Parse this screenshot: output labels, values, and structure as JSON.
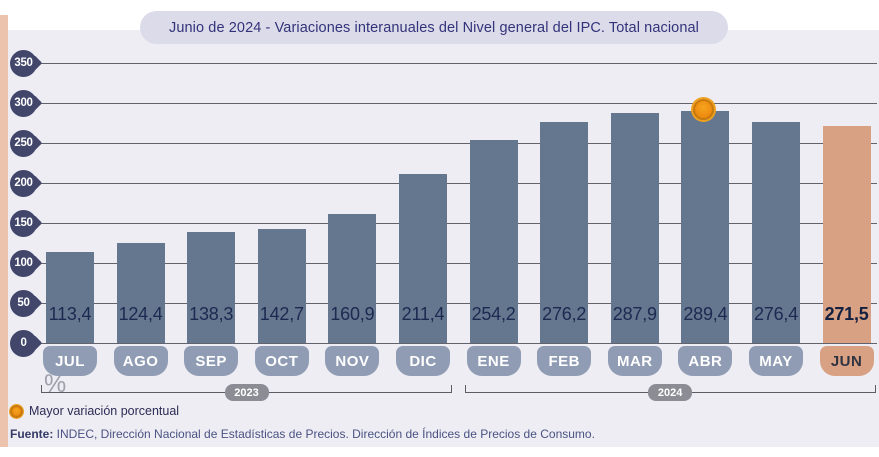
{
  "title": "Junio de 2024 - Variaciones interanuales del Nivel general del IPC. Total nacional",
  "y_axis": {
    "unit": "%",
    "ticks": [
      350,
      300,
      250,
      200,
      150,
      100,
      50,
      0
    ]
  },
  "chart_data": {
    "type": "bar",
    "title": "Junio de 2024 - Variaciones interanuales del Nivel general del IPC. Total nacional",
    "xlabel": "",
    "ylabel": "%",
    "ylim": [
      0,
      350
    ],
    "grid": true,
    "categories": [
      "JUL",
      "AGO",
      "SEP",
      "OCT",
      "NOV",
      "DIC",
      "ENE",
      "FEB",
      "MAR",
      "ABR",
      "MAY",
      "JUN"
    ],
    "values": [
      113.4,
      124.4,
      138.3,
      142.7,
      160.9,
      211.4,
      254.2,
      276.2,
      287.9,
      289.4,
      276.4,
      271.5
    ],
    "value_labels": [
      "113,4",
      "124,4",
      "138,3",
      "142,7",
      "160,9",
      "211,4",
      "254,2",
      "276,2",
      "287,9",
      "289,4",
      "276,4",
      "271,5"
    ],
    "year_groups": [
      {
        "label": "2023",
        "from": 0,
        "to": 5
      },
      {
        "label": "2024",
        "from": 6,
        "to": 11
      }
    ],
    "highlight_month": "JUN",
    "max_marker_month": "ABR",
    "colors": {
      "bar": "#64778f",
      "highlight_bar": "#d9a184",
      "month_pill": "#8f9cb4",
      "highlight_pill": "#d9a184",
      "tick_badge": "#42466b",
      "marker_orange": "#ee8e12",
      "panel_bg": "#ededf3",
      "accent_strip": "#ecc3ad"
    }
  },
  "legend": {
    "marker_label": "Mayor variación porcentual"
  },
  "source": {
    "prefix": "Fuente:",
    "text": " INDEC, Dirección Nacional de Estadísticas de Precios. Dirección de Índices de Precios de Consumo."
  }
}
